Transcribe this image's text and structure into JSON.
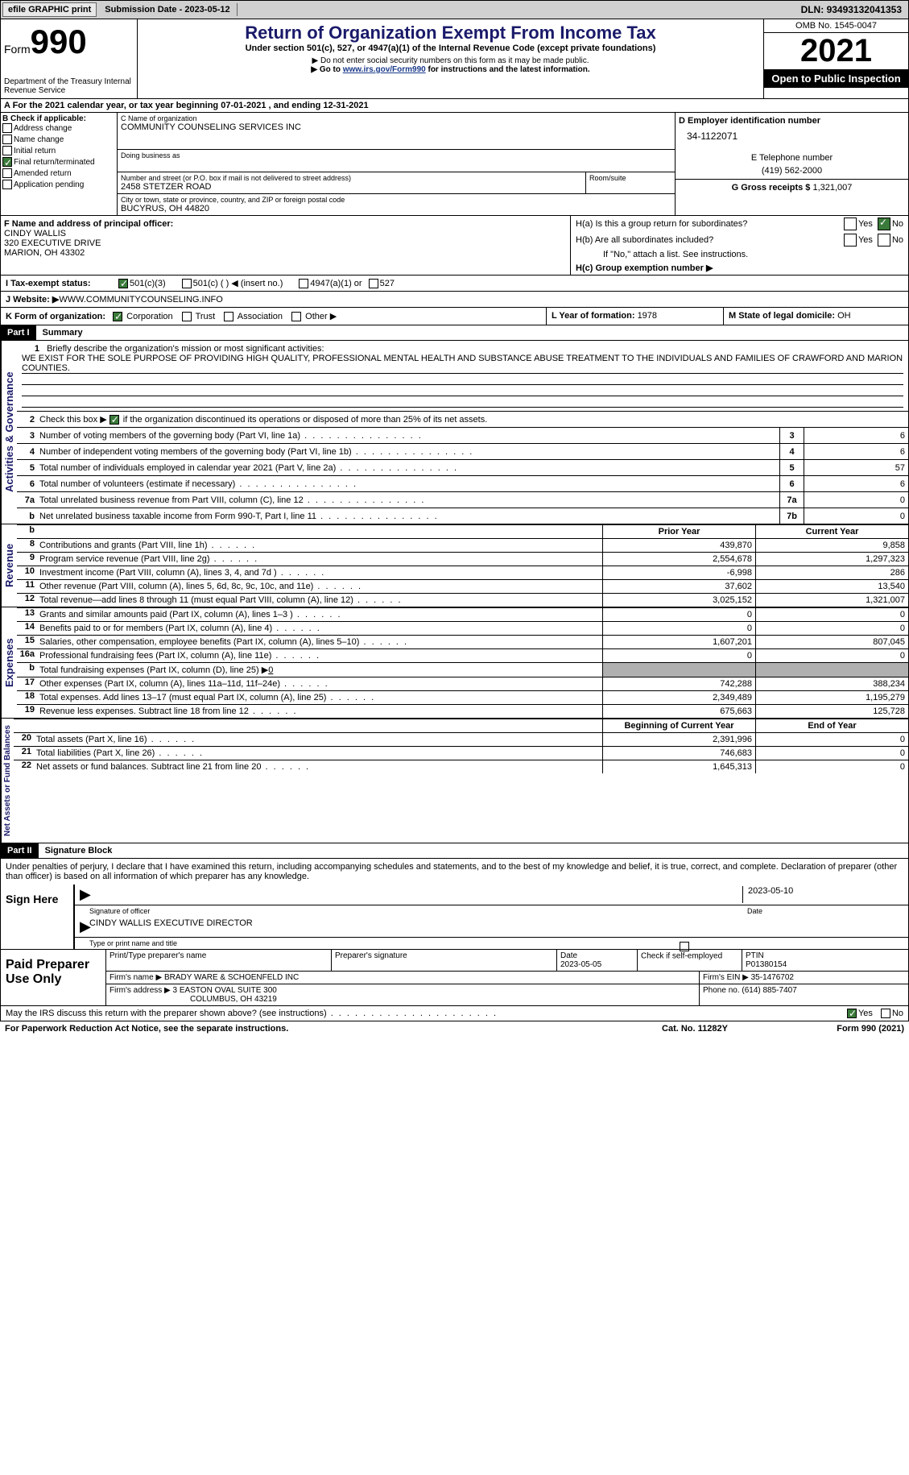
{
  "topbar": {
    "efile": "efile GRAPHIC print",
    "submission_label": "Submission Date - ",
    "submission_date": "2023-05-12",
    "dln_label": "DLN: ",
    "dln": "93493132041353"
  },
  "header": {
    "form_word": "Form",
    "form_num": "990",
    "dept": "Department of the Treasury\nInternal Revenue Service",
    "title": "Return of Organization Exempt From Income Tax",
    "subtitle": "Under section 501(c), 527, or 4947(a)(1) of the Internal Revenue Code (except private foundations)",
    "note1": "▶ Do not enter social security numbers on this form as it may be made public.",
    "note2_pre": "▶ Go to ",
    "note2_link": "www.irs.gov/Form990",
    "note2_post": " for instructions and the latest information.",
    "omb": "OMB No. 1545-0047",
    "year": "2021",
    "open": "Open to Public Inspection"
  },
  "row_a": {
    "text": "A For the 2021 calendar year, or tax year beginning ",
    "begin": "07-01-2021",
    "mid": "   , and ending ",
    "end": "12-31-2021"
  },
  "b": {
    "hdr": "B Check if applicable:",
    "addr": "Address change",
    "name": "Name change",
    "initial": "Initial return",
    "final": "Final return/terminated",
    "amended": "Amended return",
    "app": "Application pending"
  },
  "c": {
    "name_label": "C Name of organization",
    "name": "COMMUNITY COUNSELING SERVICES INC",
    "dba_label": "Doing business as",
    "addr_label": "Number and street (or P.O. box if mail is not delivered to street address)",
    "addr": "2458 STETZER ROAD",
    "room_label": "Room/suite",
    "city_label": "City or town, state or province, country, and ZIP or foreign postal code",
    "city": "BUCYRUS, OH  44820"
  },
  "d": {
    "label": "D Employer identification number",
    "value": "34-1122071"
  },
  "e": {
    "label": "E Telephone number",
    "value": "(419) 562-2000"
  },
  "g": {
    "label": "G Gross receipts $ ",
    "value": "1,321,007"
  },
  "f": {
    "label": "F Name and address of principal officer:",
    "name": "CINDY WALLIS",
    "addr1": "320 EXECUTIVE DRIVE",
    "addr2": "MARION, OH  43302"
  },
  "h": {
    "a": "H(a)  Is this a group return for subordinates?",
    "b": "H(b)  Are all subordinates included?",
    "b_note": "If \"No,\" attach a list. See instructions.",
    "c": "H(c)  Group exemption number ▶",
    "yes": "Yes",
    "no": "No"
  },
  "i": {
    "label": "I   Tax-exempt status:",
    "c3": "501(c)(3)",
    "c": "501(c) (  ) ◀ (insert no.)",
    "a1": "4947(a)(1) or",
    "s527": "527"
  },
  "j": {
    "label": "J   Website: ▶",
    "value": " WWW.COMMUNITYCOUNSELING.INFO"
  },
  "k": {
    "label": "K Form of organization:",
    "corp": "Corporation",
    "trust": "Trust",
    "assoc": "Association",
    "other": "Other ▶"
  },
  "l": {
    "label": "L Year of formation: ",
    "value": "1978"
  },
  "m": {
    "label": "M State of legal domicile: ",
    "value": "OH"
  },
  "part1": {
    "hdr": "Part I",
    "title": "Summary"
  },
  "brief": {
    "num": "1",
    "label": "Briefly describe the organization's mission or most significant activities:",
    "text": "WE EXIST FOR THE SOLE PURPOSE OF PROVIDING HIGH QUALITY, PROFESSIONAL MENTAL HEALTH AND SUBSTANCE ABUSE TREATMENT TO THE INDIVIDUALS AND FAMILIES OF CRAWFORD AND MARION COUNTIES."
  },
  "line2": {
    "num": "2",
    "text": "Check this box ▶",
    "post": "if the organization discontinued its operations or disposed of more than 25% of its net assets."
  },
  "gov_lines": [
    {
      "num": "3",
      "text": "Number of voting members of the governing body (Part VI, line 1a)",
      "box": "3",
      "val": "6"
    },
    {
      "num": "4",
      "text": "Number of independent voting members of the governing body (Part VI, line 1b)",
      "box": "4",
      "val": "6"
    },
    {
      "num": "5",
      "text": "Total number of individuals employed in calendar year 2021 (Part V, line 2a)",
      "box": "5",
      "val": "57"
    },
    {
      "num": "6",
      "text": "Total number of volunteers (estimate if necessary)",
      "box": "6",
      "val": "6"
    },
    {
      "num": "7a",
      "text": "Total unrelated business revenue from Part VIII, column (C), line 12",
      "box": "7a",
      "val": "0"
    },
    {
      "num": "b",
      "text": "Net unrelated business taxable income from Form 990-T, Part I, line 11",
      "box": "7b",
      "val": "0"
    }
  ],
  "py_hdr": "Prior Year",
  "cy_hdr": "Current Year",
  "rev_lines": [
    {
      "num": "8",
      "text": "Contributions and grants (Part VIII, line 1h)",
      "py": "439,870",
      "cy": "9,858"
    },
    {
      "num": "9",
      "text": "Program service revenue (Part VIII, line 2g)",
      "py": "2,554,678",
      "cy": "1,297,323"
    },
    {
      "num": "10",
      "text": "Investment income (Part VIII, column (A), lines 3, 4, and 7d )",
      "py": "-6,998",
      "cy": "286"
    },
    {
      "num": "11",
      "text": "Other revenue (Part VIII, column (A), lines 5, 6d, 8c, 9c, 10c, and 11e)",
      "py": "37,602",
      "cy": "13,540"
    },
    {
      "num": "12",
      "text": "Total revenue—add lines 8 through 11 (must equal Part VIII, column (A), line 12)",
      "py": "3,025,152",
      "cy": "1,321,007"
    }
  ],
  "exp_lines": [
    {
      "num": "13",
      "text": "Grants and similar amounts paid (Part IX, column (A), lines 1–3 )",
      "py": "0",
      "cy": "0"
    },
    {
      "num": "14",
      "text": "Benefits paid to or for members (Part IX, column (A), line 4)",
      "py": "0",
      "cy": "0"
    },
    {
      "num": "15",
      "text": "Salaries, other compensation, employee benefits (Part IX, column (A), lines 5–10)",
      "py": "1,607,201",
      "cy": "807,045"
    },
    {
      "num": "16a",
      "text": "Professional fundraising fees (Part IX, column (A), line 11e)",
      "py": "0",
      "cy": "0"
    },
    {
      "num": "b",
      "text": "Total fundraising expenses (Part IX, column (D), line 25) ▶",
      "fund": "0",
      "shaded": true
    },
    {
      "num": "17",
      "text": "Other expenses (Part IX, column (A), lines 11a–11d, 11f–24e)",
      "py": "742,288",
      "cy": "388,234"
    },
    {
      "num": "18",
      "text": "Total expenses. Add lines 13–17 (must equal Part IX, column (A), line 25)",
      "py": "2,349,489",
      "cy": "1,195,279"
    },
    {
      "num": "19",
      "text": "Revenue less expenses. Subtract line 18 from line 12",
      "py": "675,663",
      "cy": "125,728"
    }
  ],
  "boy_hdr": "Beginning of Current Year",
  "eoy_hdr": "End of Year",
  "na_lines": [
    {
      "num": "20",
      "text": "Total assets (Part X, line 16)",
      "py": "2,391,996",
      "cy": "0"
    },
    {
      "num": "21",
      "text": "Total liabilities (Part X, line 26)",
      "py": "746,683",
      "cy": "0"
    },
    {
      "num": "22",
      "text": "Net assets or fund balances. Subtract line 21 from line 20",
      "py": "1,645,313",
      "cy": "0"
    }
  ],
  "tabs": {
    "gov": "Activities & Governance",
    "rev": "Revenue",
    "exp": "Expenses",
    "na": "Net Assets or\nFund Balances"
  },
  "part2": {
    "hdr": "Part II",
    "title": "Signature Block"
  },
  "sig": {
    "decl": "Under penalties of perjury, I declare that I have examined this return, including accompanying schedules and statements, and to the best of my knowledge and belief, it is true, correct, and complete. Declaration of preparer (other than officer) is based on all information of which preparer has any knowledge.",
    "sign_here": "Sign Here",
    "sig_officer": "Signature of officer",
    "sig_date": "2023-05-10",
    "date_lbl": "Date",
    "name_title": "CINDY WALLIS  EXECUTIVE DIRECTOR",
    "type_name": "Type or print name and title"
  },
  "prep": {
    "hdr": "Paid Preparer Use Only",
    "print_name_lbl": "Print/Type preparer's name",
    "sig_lbl": "Preparer's signature",
    "date_lbl": "Date",
    "date": "2023-05-05",
    "check_lbl": "Check         if self-employed",
    "ptin_lbl": "PTIN",
    "ptin": "P01380154",
    "firm_name_lbl": "Firm's name     ▶ ",
    "firm_name": "BRADY WARE & SCHOENFELD INC",
    "firm_ein_lbl": "Firm's EIN ▶ ",
    "firm_ein": "35-1476702",
    "firm_addr_lbl": "Firm's address ▶ ",
    "firm_addr1": "3 EASTON OVAL SUITE 300",
    "firm_addr2": "COLUMBUS, OH  43219",
    "phone_lbl": "Phone no. ",
    "phone": "(614) 885-7407"
  },
  "discuss": {
    "text": "May the IRS discuss this return with the preparer shown above? (see instructions)",
    "yes": "Yes",
    "no": "No"
  },
  "footer": {
    "pra": "For Paperwork Reduction Act Notice, see the separate instructions.",
    "cat": "Cat. No. 11282Y",
    "form": "Form 990 (2021)"
  }
}
